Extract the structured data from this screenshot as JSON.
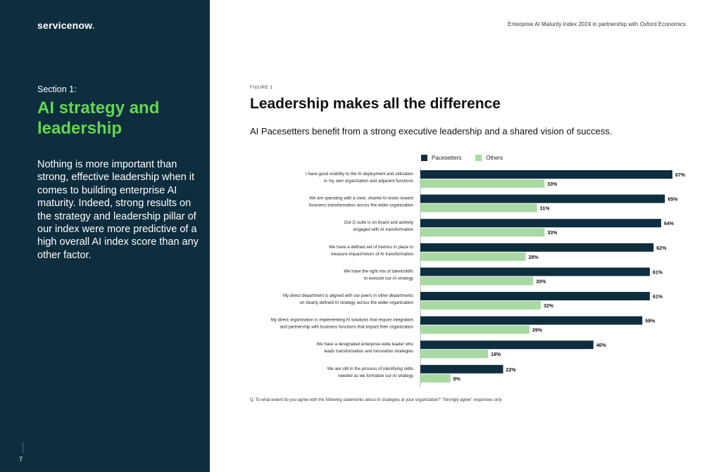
{
  "brand": {
    "logo_text": "servicenow",
    "logo_suffix": "."
  },
  "header": {
    "text": "Enterprise AI Maturity Index 2024 in partnership with Oxford Economics"
  },
  "sidebar": {
    "section_label": "Section 1:",
    "section_title": "AI strategy and leadership",
    "body": "Nothing is more important than strong, effective leadership when it comes to building enterprise AI maturity. Indeed, strong results on the strategy and leadership pillar of our index were more predictive of a high overall AI index score than any other factor.",
    "page_number": "7"
  },
  "figure": {
    "label": "FIGURE 1",
    "title": "Leadership makes all the difference",
    "subtitle": "AI Pacesetters benefit from a strong executive leadership and a shared vision of  success.",
    "footnote": "Q. To what extent do you agree with the following statements about AI strategies at your organization? \"Strongly agree\" responses only"
  },
  "colors": {
    "sidebar_bg": "#0e2d3e",
    "accent_green": "#62d84e",
    "pacesetters": "#0e2d3e",
    "others": "#a8d9a2"
  },
  "chart_data": {
    "type": "bar",
    "orientation": "horizontal",
    "legend": [
      "Pacesetters",
      "Others"
    ],
    "value_suffix": "%",
    "xlim": [
      0,
      67
    ],
    "categories": [
      [
        "I have good visibility to the AI deployment and utilization",
        "in my own organization and adjacent functions"
      ],
      [
        "We are operating with a clear, shared AI-vision toward",
        "business transformation across the wider organization"
      ],
      [
        "Our C-suite is on board and actively",
        "engaged with AI transformation"
      ],
      [
        "We have a defined set of metrics in place to",
        "measure impact/return of AI transformation"
      ],
      [
        "We have the right mix of talent/skills",
        "to execute our AI strategy"
      ],
      [
        "My direct department is aligned with our peers in other departments",
        "on clearly defined AI strategy across the wider organization"
      ],
      [
        "My direct organization is implementing AI solutions that require integration",
        "and partnership with business functions that impact their organization"
      ],
      [
        "We have a designated enterprise-wide leader who",
        "leads transformation and innovation strategies"
      ],
      [
        "We are still in the process of identifying skills",
        "needed as we formalize our AI strategy"
      ]
    ],
    "series": [
      {
        "name": "Pacesetters",
        "values": [
          67,
          65,
          64,
          62,
          61,
          61,
          59,
          46,
          22
        ]
      },
      {
        "name": "Others",
        "values": [
          33,
          31,
          33,
          28,
          30,
          32,
          29,
          18,
          8
        ]
      }
    ]
  }
}
